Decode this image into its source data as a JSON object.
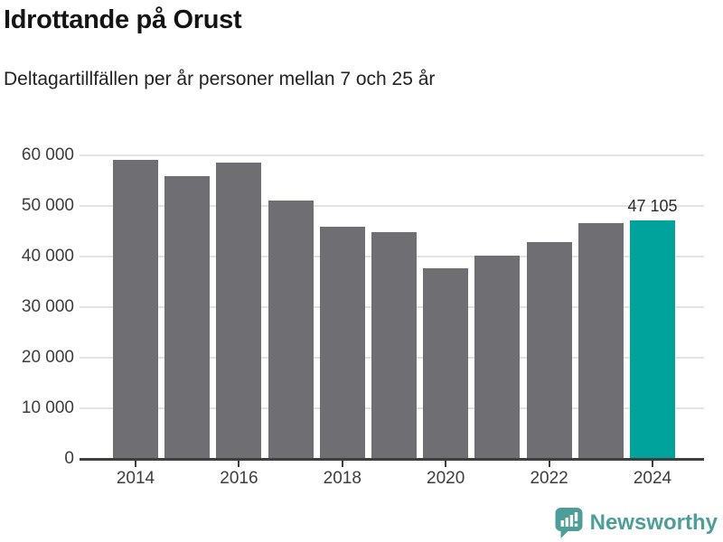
{
  "header": {
    "title": "Idrottande på Orust",
    "subtitle": "Deltagartillfällen per år personer mellan 7 och 25 år"
  },
  "chart_data": {
    "type": "bar",
    "categories": [
      "2014",
      "2015",
      "2016",
      "2017",
      "2018",
      "2019",
      "2020",
      "2021",
      "2022",
      "2023",
      "2024"
    ],
    "values": [
      59100,
      55900,
      58600,
      51000,
      45900,
      44800,
      37700,
      40100,
      42800,
      46600,
      47105
    ],
    "title": "Idrottande på Orust",
    "subtitle": "Deltagartillfällen per år personer mellan 7 och 25 år",
    "xlabel": "",
    "ylabel": "",
    "ylim": [
      0,
      60000
    ],
    "grid": "horizontal",
    "legend": "none",
    "highlight_index": 10,
    "data_labels": [
      {
        "index": 10,
        "text": "47 105"
      }
    ],
    "yticks": [
      {
        "value": 0,
        "label": "0"
      },
      {
        "value": 10000,
        "label": "10 000"
      },
      {
        "value": 20000,
        "label": "20 000"
      },
      {
        "value": 30000,
        "label": "30 000"
      },
      {
        "value": 40000,
        "label": "40 000"
      },
      {
        "value": 50000,
        "label": "50 000"
      },
      {
        "value": 60000,
        "label": "60 000"
      }
    ],
    "xticks": [
      {
        "index": 0,
        "label": "2014"
      },
      {
        "index": 2,
        "label": "2016"
      },
      {
        "index": 4,
        "label": "2018"
      },
      {
        "index": 6,
        "label": "2020"
      },
      {
        "index": 8,
        "label": "2022"
      },
      {
        "index": 10,
        "label": "2024"
      }
    ],
    "colors": {
      "bar_default": "#6F6E73",
      "bar_highlight": "#00A39C",
      "gridline": "#E3E3E3",
      "axis": "#3F3F3F"
    }
  },
  "footer": {
    "brand": "Newsworthy",
    "logo_icon": "newsworthy-speech-bubble-chart-icon",
    "brand_color": "#4D9E99"
  }
}
